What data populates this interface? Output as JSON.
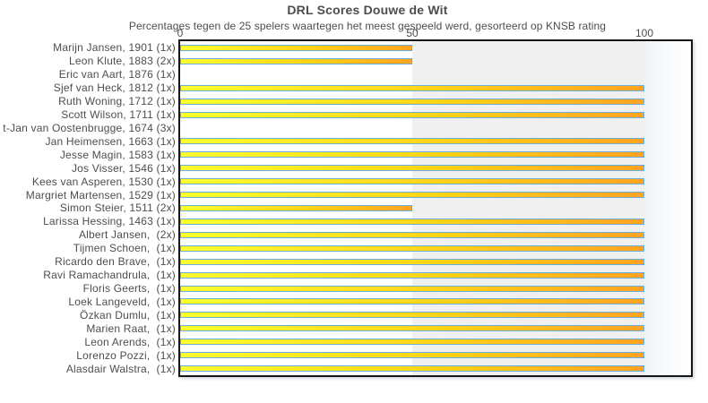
{
  "chart_data": {
    "type": "bar",
    "orientation": "horizontal",
    "title": "DRL Scores Douwe de Wit",
    "subtitle": "Percentages tegen de 25 spelers waartegen het meest gespeeld werd, gesorteerd op KNSB rating",
    "categories": [
      "Marijn Jansen, 1901 (1x)",
      "Leon Klute, 1883 (2x)",
      "Eric van Aart, 1876 (1x)",
      "Sjef van Heck, 1812 (1x)",
      "Ruth Woning, 1712 (1x)",
      "Scott Wilson, 1711 (1x)",
      "t-Jan van Oostenbrugge, 1674 (3x)",
      "Jan Heimensen, 1663 (1x)",
      "Jesse Magin, 1583 (1x)",
      "Jos Visser, 1546 (1x)",
      "Kees van Asperen, 1530 (1x)",
      "Margriet Martensen, 1529 (1x)",
      "Simon Steier, 1511 (2x)",
      "Larissa Hessing, 1463 (1x)",
      "Albert Jansen,  (2x)",
      "Tijmen Schoen,  (1x)",
      "Ricardo den Brave,  (1x)",
      "Ravi Ramachandrula,  (1x)",
      "Floris Geerts,  (1x)",
      "Loek Langeveld,  (1x)",
      "Özkan Dumlu,  (1x)",
      "Marien Raat,  (1x)",
      "Leon Arends,  (1x)",
      "Lorenzo Pozzi,  (1x)",
      "Alasdair Walstra,  (1x)"
    ],
    "values": [
      50,
      50,
      0,
      100,
      100,
      100,
      0,
      100,
      100,
      100,
      100,
      100,
      50,
      100,
      100,
      100,
      100,
      100,
      100,
      100,
      100,
      100,
      100,
      100,
      100
    ],
    "xticks": [
      0,
      50,
      100
    ],
    "xlim": [
      0,
      110
    ],
    "xlabel": "",
    "ylabel": "",
    "legend": "none",
    "grid_bands": [
      {
        "range": [
          0,
          50
        ],
        "color": "#ffffff"
      },
      {
        "range": [
          50,
          100
        ],
        "color": "#f0f0f0"
      },
      {
        "range": [
          100,
          110
        ],
        "color": "#eef4f8"
      }
    ],
    "colors": {
      "bar_gradient_start": "#fffe2b",
      "bar_gradient_mid": "#ffd415",
      "bar_gradient_end": "#ffa321",
      "bar_border": "#69acdf",
      "plot_border": "#161616",
      "text": "#4d4d4d"
    }
  }
}
